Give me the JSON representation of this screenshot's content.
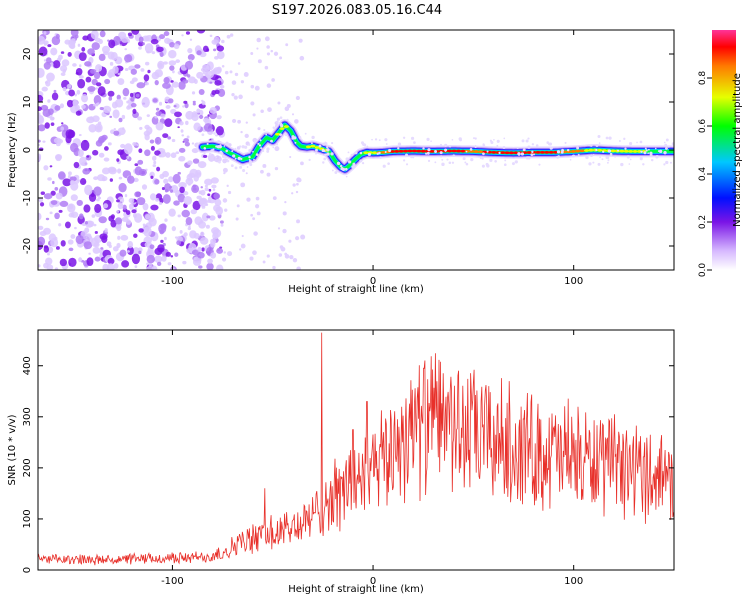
{
  "chart_data": [
    {
      "type": "heatmap",
      "title": "S197.2026.083.05.16.C44",
      "xlabel": "Height of straight line (km)",
      "ylabel": "Frequency (Hz)",
      "xlim": [
        -167,
        150
      ],
      "ylim": [
        -25,
        25
      ],
      "xticks": [
        -100,
        0,
        100
      ],
      "xtick_labels": [
        "-100",
        "0",
        "100"
      ],
      "yticks": [
        -20,
        -10,
        0,
        10,
        20
      ],
      "ytick_labels": [
        "-20",
        "-10",
        "0",
        "10",
        "20"
      ],
      "noise_region_x": [
        -167,
        -75
      ],
      "ridge": {
        "x": [
          -85,
          -80,
          -75,
          -72,
          -68,
          -65,
          -60,
          -57,
          -53,
          -50,
          -47,
          -44,
          -41,
          -38,
          -36,
          -33,
          -30,
          -26,
          -22,
          -19,
          -16,
          -14,
          -12,
          -9,
          -6,
          -3,
          0,
          5,
          10,
          20,
          30,
          40,
          50,
          60,
          70,
          80,
          90,
          100,
          110,
          120,
          130,
          140,
          150
        ],
        "freq": [
          0.6,
          0.8,
          0.3,
          -0.5,
          -1.3,
          -2.0,
          -1.4,
          0.7,
          2.6,
          2.0,
          3.6,
          5.2,
          4.0,
          1.6,
          0.8,
          0.6,
          0.8,
          0.3,
          -0.3,
          -2.2,
          -3.6,
          -4.0,
          -3.3,
          -2.0,
          -0.9,
          -0.5,
          -0.6,
          -0.5,
          -0.3,
          -0.2,
          -0.3,
          -0.2,
          -0.3,
          -0.5,
          -0.6,
          -0.5,
          -0.5,
          -0.3,
          0.0,
          -0.2,
          -0.3,
          -0.3,
          -0.3
        ],
        "amplitude": [
          0.4,
          0.45,
          0.5,
          0.5,
          0.5,
          0.55,
          0.5,
          0.55,
          0.6,
          0.6,
          0.65,
          0.7,
          0.6,
          0.55,
          0.5,
          0.7,
          0.75,
          0.7,
          0.6,
          0.55,
          0.5,
          0.5,
          0.5,
          0.55,
          0.6,
          0.65,
          0.7,
          0.8,
          0.9,
          0.95,
          0.95,
          0.9,
          0.85,
          0.9,
          0.95,
          0.95,
          0.9,
          0.8,
          0.7,
          0.7,
          0.65,
          0.6,
          0.55
        ]
      },
      "colorbar": {
        "label": "Normalized spectral amplitude",
        "range": [
          0,
          1
        ],
        "ticks": [
          0.0,
          0.2,
          0.4,
          0.6,
          0.8
        ],
        "tick_labels": [
          "0.0",
          "0.2",
          "0.4",
          "0.6",
          "0.8"
        ],
        "colors": [
          "#ffffff",
          "#8a2be2",
          "#0000ff",
          "#00c8ff",
          "#00ff00",
          "#ffff00",
          "#ff8000",
          "#ff0000",
          "#ff3399"
        ]
      }
    },
    {
      "type": "line",
      "xlabel": "Height of straight line (km)",
      "ylabel": "SNR (10 * v/v)",
      "xlim": [
        -167,
        150
      ],
      "ylim": [
        0,
        470
      ],
      "xticks": [
        -100,
        0,
        100
      ],
      "xtick_labels": [
        "-100",
        "0",
        "100"
      ],
      "yticks": [
        0,
        100,
        200,
        300,
        400
      ],
      "ytick_labels": [
        "0",
        "100",
        "200",
        "300",
        "400"
      ],
      "color": "#e8302a",
      "series": [
        {
          "name": "SNR",
          "x": [
            -167,
            -150,
            -130,
            -110,
            -90,
            -80,
            -75,
            -70,
            -65,
            -60,
            -55,
            -50,
            -45,
            -40,
            -35,
            -30,
            -27,
            -25,
            -20,
            -15,
            -10,
            -5,
            0,
            5,
            10,
            15,
            20,
            25,
            30,
            35,
            40,
            45,
            50,
            60,
            70,
            80,
            90,
            100,
            110,
            120,
            130,
            140,
            150
          ],
          "y": [
            20,
            20,
            20,
            22,
            24,
            27,
            35,
            45,
            55,
            60,
            70,
            70,
            75,
            85,
            90,
            100,
            120,
            130,
            140,
            150,
            175,
            185,
            180,
            210,
            240,
            265,
            280,
            285,
            290,
            290,
            285,
            270,
            265,
            255,
            240,
            235,
            225,
            215,
            210,
            200,
            195,
            190,
            185
          ]
        }
      ],
      "spikes": [
        {
          "x": -25.5,
          "y": 465
        },
        {
          "x": -3,
          "y": 330
        },
        {
          "x": -54,
          "y": 160
        },
        {
          "x": -10,
          "y": 275
        },
        {
          "x": 37,
          "y": 335
        }
      ]
    }
  ]
}
